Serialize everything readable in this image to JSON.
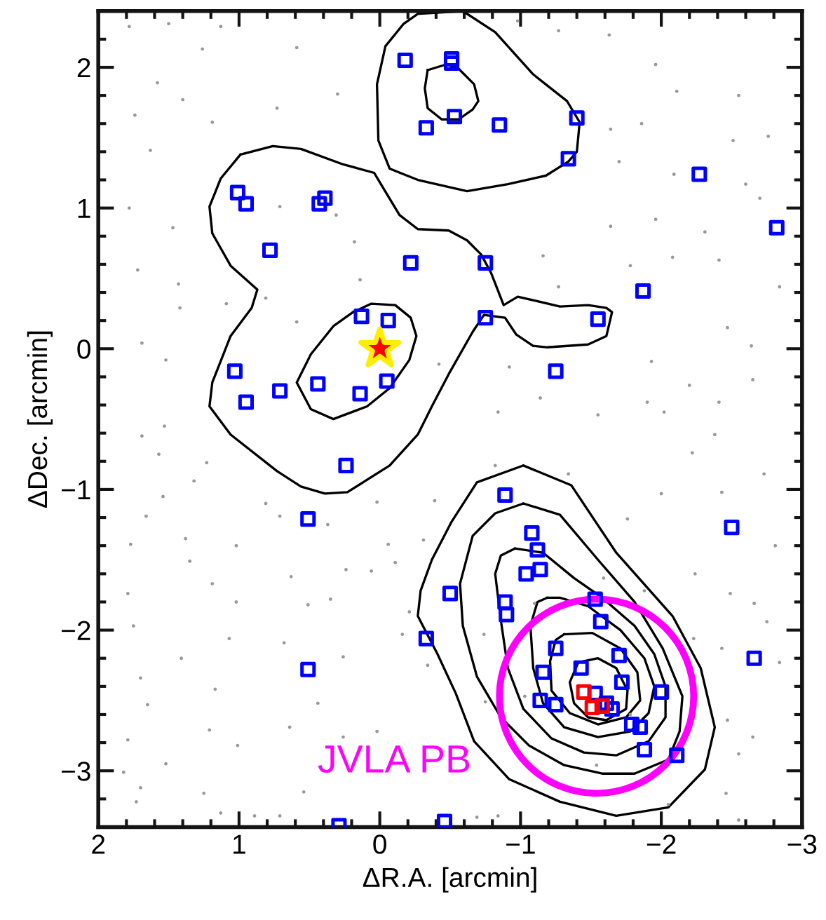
{
  "chart_data": {
    "type": "scatter",
    "xlabel": "ΔR.A. [arcmin]",
    "ylabel": "ΔDec. [arcmin]",
    "xlim": [
      2,
      -3
    ],
    "ylim": [
      -3.4,
      2.4
    ],
    "xticks": [
      2,
      1,
      0,
      {
        "value": -1,
        "label": "−1"
      },
      {
        "value": -2,
        "label": "−2"
      },
      {
        "value": -3,
        "label": "−3"
      }
    ],
    "yticks": [
      {
        "value": -3,
        "label": "−3"
      },
      {
        "value": -2,
        "label": "−2"
      },
      {
        "value": -1,
        "label": "−1"
      },
      0,
      1,
      2
    ],
    "grid": false,
    "legend": false,
    "annotations": [
      "JVLA PB"
    ],
    "series": [
      {
        "marker": "circle",
        "color": "#999999",
        "x": [
          1.78,
          1.5,
          1.13,
          0.59,
          1.26,
          1.58,
          1.4,
          1.74,
          1.19,
          0.73,
          0.3,
          1.63,
          1.78,
          1.47,
          1.72,
          1.43,
          1.42,
          1.69,
          1.52,
          1.09,
          0.81,
          0.59,
          -0.42,
          0.71,
          0.31,
          0.18,
          0.14,
          -0.98,
          -1.27,
          -1.63,
          -1.96,
          -2.11,
          -2.55,
          -2.76,
          -2.51,
          -1.86,
          -1.64,
          -1.7,
          -2.09,
          -2.6,
          -2.7,
          -2.31,
          -1.96,
          -1.64,
          -1.16,
          -1.27,
          -1.78,
          -2.08,
          -2.41,
          -2.47,
          -2.84,
          -2.64,
          -1.93,
          -2.2,
          -2.65,
          -2.41,
          -1.9,
          -1.55,
          -1.14,
          -0.92,
          1.69,
          1.53,
          1.57,
          1.23,
          1.54,
          1.32,
          1.66,
          1.77,
          1.38,
          1.02,
          1.35,
          1.19,
          1.79,
          1.75,
          1.07,
          1.41,
          1.7,
          1.17,
          1.65,
          1.79,
          1.21,
          1.01,
          1.52,
          1.82,
          1.7,
          1.25,
          1.73,
          1.13,
          0.89,
          0.71,
          0.54,
          0.64,
          0.26,
          0.02,
          0.26,
          0.44,
          0.68,
          0.51,
          0.35,
          0.24,
          0.06,
          -0.06,
          0.63,
          1.02,
          0.81,
          0.71,
          0.37,
          0.02,
          -0.39,
          -0.31,
          -0.11,
          -0.21,
          -0.16,
          -0.34,
          -0.84,
          -2.02,
          -2.38,
          -2.43,
          -2.73,
          -2.22,
          -2.81,
          -2.49,
          -2.24,
          -2.66,
          -2.75,
          -2.23,
          -2.43,
          -2.84,
          -2.47,
          -2.65,
          -2.55,
          -2.46,
          -2.55,
          -2.05,
          -0.84,
          -0.69,
          -0.82,
          -1.34,
          -2.0,
          -1.76,
          -1.88,
          -1.59,
          -1.1,
          -0.74,
          -0.75,
          -0.62,
          -1.03,
          -1.54,
          -1.78
        ],
        "values": [
          2.29,
          2.31,
          2.29,
          2.14,
          2.13,
          1.89,
          1.77,
          1.66,
          1.61,
          1.71,
          1.81,
          1.41,
          1.0,
          0.86,
          0.56,
          0.46,
          0.29,
          0.04,
          -0.08,
          0.32,
          0.36,
          0.19,
          -0.11,
          1.01,
          0.95,
          0.76,
          0.49,
          2.33,
          2.26,
          2.23,
          2.02,
          1.83,
          1.8,
          1.51,
          1.48,
          1.6,
          1.56,
          1.33,
          1.24,
          1.17,
          1.07,
          0.83,
          0.92,
          0.87,
          0.66,
          0.44,
          0.59,
          0.65,
          0.63,
          0.15,
          0.44,
          0.02,
          -0.09,
          -0.26,
          -0.22,
          -0.38,
          -0.38,
          -0.47,
          -0.35,
          -0.13,
          -0.62,
          -0.55,
          -0.75,
          -0.81,
          -1.05,
          -0.94,
          -1.19,
          -1.39,
          -1.35,
          -1.4,
          -1.51,
          -1.67,
          -1.74,
          -1.97,
          -2.06,
          -2.2,
          -2.34,
          -2.42,
          -2.53,
          -2.78,
          -2.71,
          -2.82,
          -2.95,
          -3.01,
          -3.12,
          -3.16,
          -3.22,
          -3.3,
          -3.32,
          -3.32,
          -3.15,
          -2.69,
          -2.76,
          -2.72,
          -2.19,
          -2.52,
          -2.09,
          -1.82,
          -1.78,
          -1.57,
          -1.58,
          -1.39,
          -1.62,
          -1.8,
          -1.1,
          -1.19,
          -1.25,
          -1.09,
          -1.08,
          -1.36,
          -1.52,
          -1.87,
          -2.03,
          -2.25,
          -0.45,
          -0.45,
          -0.61,
          -1.02,
          -0.89,
          -0.74,
          -1.4,
          -1.74,
          -1.6,
          -1.81,
          -1.94,
          -2.06,
          -2.13,
          -2.23,
          -2.64,
          -2.76,
          -2.88,
          -3.16,
          -3.35,
          -3.24,
          -3.32,
          -3.33,
          -0.83,
          -0.89,
          -1.03,
          -1.21,
          -1.72,
          -1.63,
          -1.81,
          -2.03,
          -2.51,
          -2.86,
          -2.47,
          -2.96,
          -2.6
        ]
      },
      {
        "marker": "square",
        "color": "#0000ff",
        "x": [
          -0.18,
          -0.51,
          -0.51,
          -0.33,
          -0.53,
          1.01,
          0.95,
          0.43,
          0.39,
          0.78,
          -0.22,
          0.13,
          -0.06,
          -0.05,
          1.03,
          0.95,
          0.71,
          0.44,
          0.14,
          -0.85,
          -1.4,
          -1.34,
          -2.27,
          -2.82,
          -0.75,
          -1.87,
          -0.75,
          -1.55,
          -1.25,
          0.24,
          0.51,
          -0.5,
          -0.33,
          0.51,
          0.29,
          -0.46,
          -0.89,
          -1.08,
          -1.12,
          -1.04,
          -1.14,
          -0.89,
          -0.9,
          -2.5,
          -1.53,
          -1.57,
          -1.25,
          -1.7,
          -1.43,
          -1.16,
          -2.66,
          -1.72,
          -2.0,
          -1.53,
          -1.14,
          -1.25,
          -1.61,
          -1.65,
          -1.79,
          -1.85,
          -1.88,
          -2.11
        ],
        "values": [
          2.05,
          2.06,
          2.03,
          1.57,
          1.65,
          1.11,
          1.03,
          1.03,
          1.07,
          0.7,
          0.61,
          0.23,
          0.2,
          -0.23,
          -0.16,
          -0.38,
          -0.3,
          -0.25,
          -0.32,
          1.59,
          1.64,
          1.35,
          1.24,
          0.86,
          0.61,
          0.41,
          0.22,
          0.21,
          -0.16,
          -0.83,
          -1.21,
          -1.74,
          -2.06,
          -2.28,
          -3.39,
          -3.36,
          -1.04,
          -1.31,
          -1.43,
          -1.6,
          -1.57,
          -1.8,
          -1.89,
          -1.27,
          -1.78,
          -1.94,
          -2.13,
          -2.18,
          -2.27,
          -2.3,
          -2.2,
          -2.37,
          -2.44,
          -2.45,
          -2.5,
          -2.53,
          -2.52,
          -2.56,
          -2.67,
          -2.69,
          -2.85,
          -2.89
        ]
      },
      {
        "marker": "square",
        "color": "#ff0000",
        "x": [
          -1.45,
          -1.51,
          -1.58
        ],
        "values": [
          -2.44,
          -2.55,
          -2.54
        ]
      },
      {
        "marker": "star",
        "color": "#ff0000",
        "x": [
          0
        ],
        "values": [
          0
        ]
      }
    ]
  }
}
